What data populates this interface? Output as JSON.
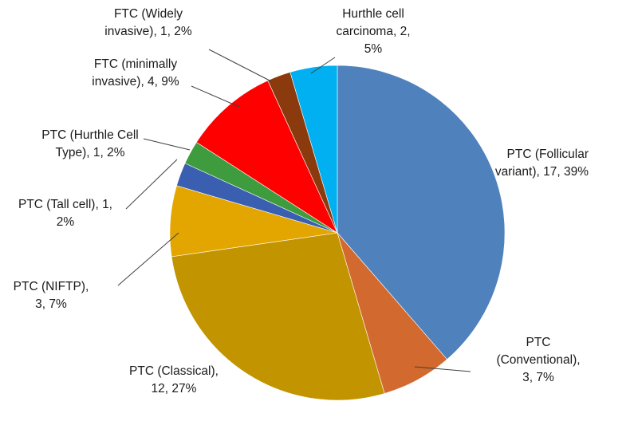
{
  "chart_data": {
    "type": "pie",
    "title": "",
    "start_angle_deg": 0,
    "direction": "clockwise",
    "slices": [
      {
        "label": "PTC  (Follicular variant)",
        "value": 17,
        "percent": "39%",
        "color": "#4F81BD",
        "label_lines": [
          "PTC  (Follicular",
          "variant), 17, 39%"
        ]
      },
      {
        "label": "PTC (Conventional)",
        "value": 3,
        "percent": "7%",
        "color": "#D2692E",
        "label_lines": [
          "PTC",
          "(Conventional),",
          "3, 7%"
        ]
      },
      {
        "label": "PTC (Classical)",
        "value": 12,
        "percent": "27%",
        "color": "#C29400",
        "label_lines": [
          "PTC (Classical),",
          "12, 27%"
        ]
      },
      {
        "label": "PTC (NIFTP)",
        "value": 3,
        "percent": "7%",
        "color": "#E3A600",
        "label_lines": [
          "PTC (NIFTP),",
          "3, 7%"
        ]
      },
      {
        "label": "PTC (Tall cell)",
        "value": 1,
        "percent": "2%",
        "color": "#3A5FB0",
        "label_lines": [
          "PTC (Tall cell), 1,",
          "2%"
        ]
      },
      {
        "label": "PTC (Hurthle Cell Type)",
        "value": 1,
        "percent": "2%",
        "color": "#3E9B3E",
        "label_lines": [
          "PTC (Hurthle Cell",
          "Type), 1, 2%"
        ]
      },
      {
        "label": "FTC (minimally invasive)",
        "value": 4,
        "percent": "9%",
        "color": "#FF0000",
        "label_lines": [
          "FTC (minimally",
          "invasive), 4, 9%"
        ]
      },
      {
        "label": "FTC (Widely invasive)",
        "value": 1,
        "percent": "2%",
        "color": "#8B3A0E",
        "label_lines": [
          "FTC (Widely",
          "invasive), 1, 2%"
        ]
      },
      {
        "label": "Hurthle cell carcinoma",
        "value": 2,
        "percent": "5%",
        "color": "#00B0F0",
        "label_lines": [
          "Hurthle cell",
          "carcinoma, 2,",
          "5%"
        ]
      }
    ]
  }
}
